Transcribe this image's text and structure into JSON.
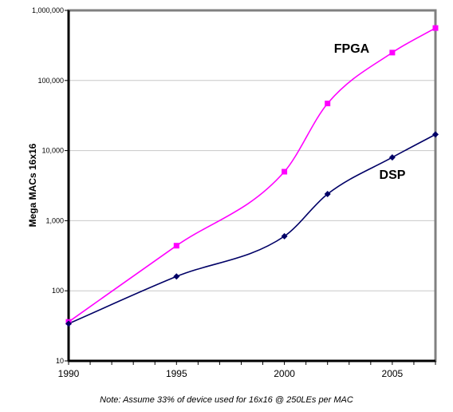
{
  "chart_data": {
    "type": "line",
    "title": "",
    "xlabel": "",
    "ylabel": "Mega MACs 16x16",
    "xlim": [
      1990,
      2007
    ],
    "ylim": [
      10,
      1000000
    ],
    "y_scale": "log",
    "grid": "horizontal",
    "x_ticks": [
      1990,
      1995,
      2000,
      2005
    ],
    "x_tick_labels": [
      "1990",
      "1995",
      "2000",
      "2005"
    ],
    "y_ticks": [
      10,
      100,
      1000,
      10000,
      100000,
      1000000
    ],
    "y_tick_labels": [
      "10",
      "100",
      "1,000",
      "10,000",
      "100,000",
      "1,000,000"
    ],
    "series": [
      {
        "name": "FPGA",
        "color": "#ff00ff",
        "marker": "square",
        "points": [
          [
            1990,
            36
          ],
          [
            1995,
            440
          ],
          [
            2000,
            5000
          ],
          [
            2002,
            47000
          ],
          [
            2005,
            250000
          ],
          [
            2007,
            560000
          ]
        ]
      },
      {
        "name": "DSP",
        "color": "#000066",
        "marker": "diamond",
        "points": [
          [
            1990,
            34
          ],
          [
            1995,
            160
          ],
          [
            2000,
            600
          ],
          [
            2002,
            2400
          ],
          [
            2005,
            8000
          ],
          [
            2007,
            17000
          ]
        ]
      }
    ],
    "note": "Note: Assume 33% of device used for 16x16 @ 250LEs per MAC"
  }
}
